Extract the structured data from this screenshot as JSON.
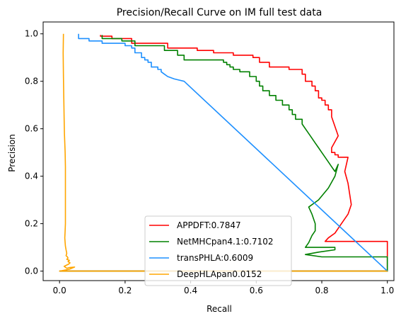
{
  "chart_data": {
    "type": "line",
    "title": "Precision/Recall Curve on IM full test data",
    "xlabel": "Recall",
    "ylabel": "Precision",
    "xlim": [
      -0.05,
      1.02
    ],
    "ylim": [
      -0.04,
      1.05
    ],
    "xticks": [
      "0.0",
      "0.2",
      "0.4",
      "0.6",
      "0.8",
      "1.0"
    ],
    "xtick_values": [
      0.0,
      0.2,
      0.4,
      0.6,
      0.8,
      1.0
    ],
    "yticks": [
      "0.0",
      "0.2",
      "0.4",
      "0.6",
      "0.8",
      "1.0"
    ],
    "ytick_values": [
      0.0,
      0.2,
      0.4,
      0.6,
      0.8,
      1.0
    ],
    "grid": false,
    "legend_position": "lower center",
    "series": [
      {
        "name": "APPDFT:0.7847",
        "color": "#ff0000",
        "x": [
          0.125,
          0.125,
          0.16,
          0.16,
          0.22,
          0.22,
          0.33,
          0.33,
          0.42,
          0.42,
          0.47,
          0.47,
          0.53,
          0.53,
          0.59,
          0.59,
          0.61,
          0.61,
          0.64,
          0.64,
          0.7,
          0.7,
          0.74,
          0.74,
          0.75,
          0.75,
          0.77,
          0.77,
          0.78,
          0.78,
          0.79,
          0.79,
          0.8,
          0.8,
          0.81,
          0.81,
          0.82,
          0.82,
          0.83,
          0.83,
          0.85,
          0.83,
          0.83,
          0.84,
          0.84,
          0.85,
          0.85,
          0.88,
          0.87,
          0.88,
          0.89,
          0.88,
          0.86,
          0.84,
          0.82,
          0.81,
          1.0,
          1.0,
          0.81,
          0.0
        ],
        "y": [
          0.995,
          0.99,
          0.99,
          0.98,
          0.98,
          0.96,
          0.96,
          0.94,
          0.94,
          0.93,
          0.93,
          0.92,
          0.92,
          0.91,
          0.91,
          0.9,
          0.9,
          0.88,
          0.88,
          0.86,
          0.86,
          0.85,
          0.85,
          0.83,
          0.83,
          0.8,
          0.8,
          0.78,
          0.78,
          0.76,
          0.76,
          0.73,
          0.73,
          0.72,
          0.72,
          0.7,
          0.7,
          0.68,
          0.68,
          0.65,
          0.57,
          0.52,
          0.5,
          0.5,
          0.49,
          0.49,
          0.48,
          0.48,
          0.42,
          0.37,
          0.28,
          0.24,
          0.2,
          0.16,
          0.14,
          0.125,
          0.125,
          0.0,
          0.0,
          0.0
        ]
      },
      {
        "name": "NetMHCpan4.1:0.7102",
        "color": "#008000",
        "x": [
          0.13,
          0.13,
          0.19,
          0.19,
          0.23,
          0.23,
          0.32,
          0.32,
          0.36,
          0.36,
          0.38,
          0.38,
          0.5,
          0.5,
          0.51,
          0.51,
          0.52,
          0.52,
          0.53,
          0.53,
          0.55,
          0.55,
          0.58,
          0.58,
          0.6,
          0.6,
          0.61,
          0.61,
          0.62,
          0.62,
          0.64,
          0.64,
          0.66,
          0.66,
          0.68,
          0.68,
          0.7,
          0.7,
          0.71,
          0.71,
          0.72,
          0.72,
          0.74,
          0.74,
          0.75,
          0.76,
          0.77,
          0.78,
          0.79,
          0.8,
          0.81,
          0.82,
          0.83,
          0.84,
          0.85,
          0.84,
          0.82,
          0.79,
          0.76,
          0.77,
          0.78,
          0.78,
          0.77,
          0.76,
          0.75,
          0.84,
          0.84,
          0.79,
          0.75,
          0.8,
          0.82,
          1.0,
          1.0,
          0.0
        ],
        "y": [
          0.995,
          0.98,
          0.98,
          0.97,
          0.97,
          0.95,
          0.95,
          0.93,
          0.93,
          0.91,
          0.91,
          0.89,
          0.89,
          0.88,
          0.88,
          0.87,
          0.87,
          0.86,
          0.86,
          0.85,
          0.85,
          0.84,
          0.84,
          0.82,
          0.82,
          0.8,
          0.8,
          0.78,
          0.78,
          0.76,
          0.76,
          0.74,
          0.74,
          0.72,
          0.72,
          0.7,
          0.7,
          0.68,
          0.68,
          0.66,
          0.66,
          0.64,
          0.64,
          0.62,
          0.6,
          0.58,
          0.56,
          0.54,
          0.52,
          0.5,
          0.48,
          0.46,
          0.44,
          0.42,
          0.45,
          0.4,
          0.35,
          0.3,
          0.27,
          0.24,
          0.2,
          0.17,
          0.15,
          0.12,
          0.1,
          0.1,
          0.09,
          0.08,
          0.07,
          0.06,
          0.06,
          0.06,
          0.0,
          0.0
        ]
      },
      {
        "name": "transPHLA:0.6009",
        "color": "#1e90ff",
        "x": [
          0.058,
          0.058,
          0.09,
          0.09,
          0.13,
          0.13,
          0.2,
          0.2,
          0.22,
          0.22,
          0.23,
          0.23,
          0.25,
          0.25,
          0.26,
          0.26,
          0.27,
          0.27,
          0.28,
          0.28,
          0.3,
          0.3,
          0.31,
          0.31,
          0.32,
          0.33,
          0.35,
          0.38,
          1.0
        ],
        "y": [
          1.0,
          0.98,
          0.98,
          0.97,
          0.97,
          0.96,
          0.96,
          0.95,
          0.95,
          0.94,
          0.94,
          0.92,
          0.92,
          0.9,
          0.9,
          0.89,
          0.89,
          0.88,
          0.88,
          0.86,
          0.86,
          0.85,
          0.85,
          0.84,
          0.83,
          0.82,
          0.81,
          0.8,
          0.0
        ]
      },
      {
        "name": "DeepHLApan0.0152",
        "color": "#ffa500",
        "x": [
          0.012,
          0.011,
          0.012,
          0.013,
          0.014,
          0.015,
          0.017,
          0.018,
          0.018,
          0.018,
          0.018,
          0.018,
          0.017,
          0.016,
          0.017,
          0.018,
          0.02,
          0.022,
          0.02,
          0.024,
          0.026,
          0.022,
          0.03,
          0.026,
          0.032,
          0.028,
          0.014,
          0.022,
          0.03,
          0.046,
          0.03,
          0.0,
          1.0
        ],
        "y": [
          1.0,
          0.92,
          0.82,
          0.73,
          0.64,
          0.58,
          0.5,
          0.44,
          0.38,
          0.32,
          0.26,
          0.2,
          0.17,
          0.14,
          0.12,
          0.105,
          0.09,
          0.075,
          0.065,
          0.06,
          0.055,
          0.05,
          0.045,
          0.04,
          0.035,
          0.03,
          0.02,
          0.012,
          0.015,
          0.017,
          0.008,
          0.0,
          0.0
        ]
      }
    ]
  }
}
